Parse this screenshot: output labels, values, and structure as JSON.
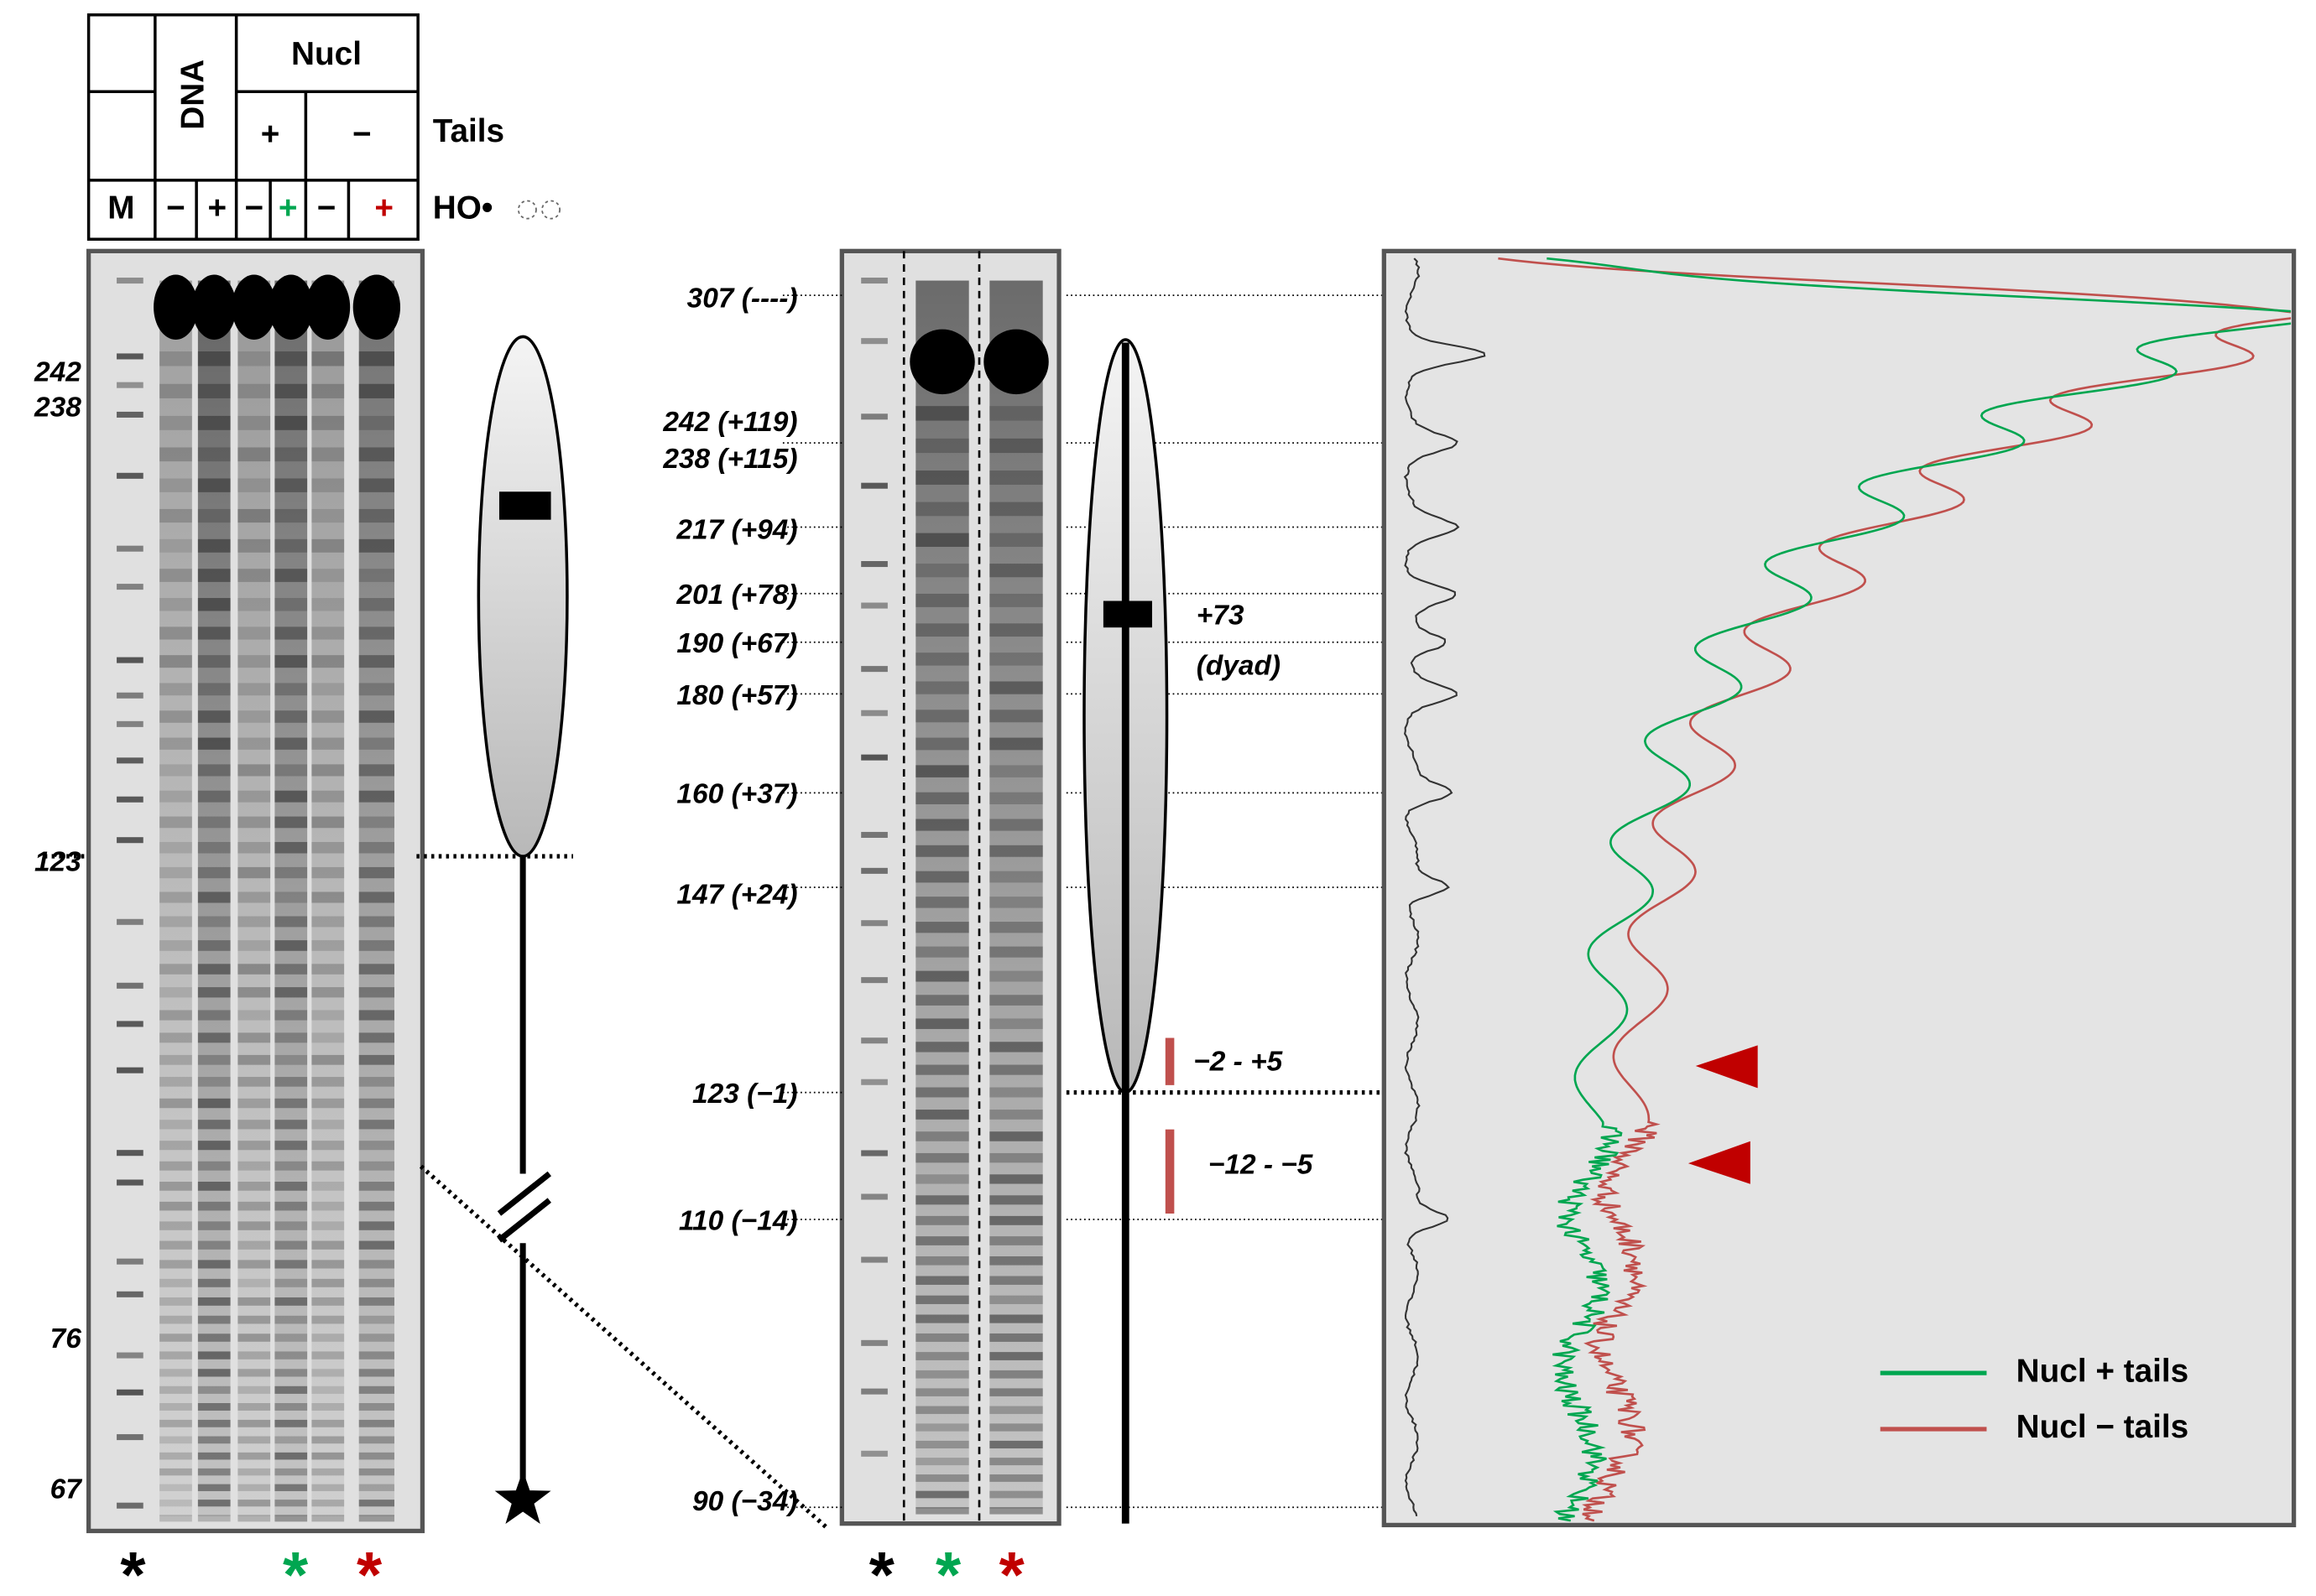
{
  "table": {
    "dna": "DNA",
    "nucl": "Nucl",
    "nucl_plus": "+",
    "nucl_minus": "−",
    "tails_label": "Tails",
    "ho_label": "HO•",
    "lanes": [
      "M",
      "−",
      "+",
      "−",
      "+",
      "−",
      "+"
    ]
  },
  "left_gel": {
    "markers": [
      "242",
      "238",
      "123",
      "76",
      "67"
    ],
    "asterisks": [
      "*",
      "*",
      "*"
    ]
  },
  "middle_gel": {
    "markers": [
      "307 (----)",
      "242 (+119)",
      "238 (+115)",
      "217 (+94)",
      "201 (+78)",
      "190 (+67)",
      "180 (+57)",
      "160 (+37)",
      "147 (+24)",
      "123 (−1)",
      "110 (−14)",
      "90 (−34)"
    ],
    "dyad": [
      "+73",
      "(dyad)"
    ],
    "regions": [
      "−2 - +5",
      "−12 - −5"
    ],
    "asterisks": [
      "*",
      "*",
      "*"
    ]
  },
  "legend": [
    {
      "name": "Nucl + tails",
      "color": "#00a650"
    },
    {
      "name": "Nucl − tails",
      "color": "#c0504d"
    }
  ]
}
